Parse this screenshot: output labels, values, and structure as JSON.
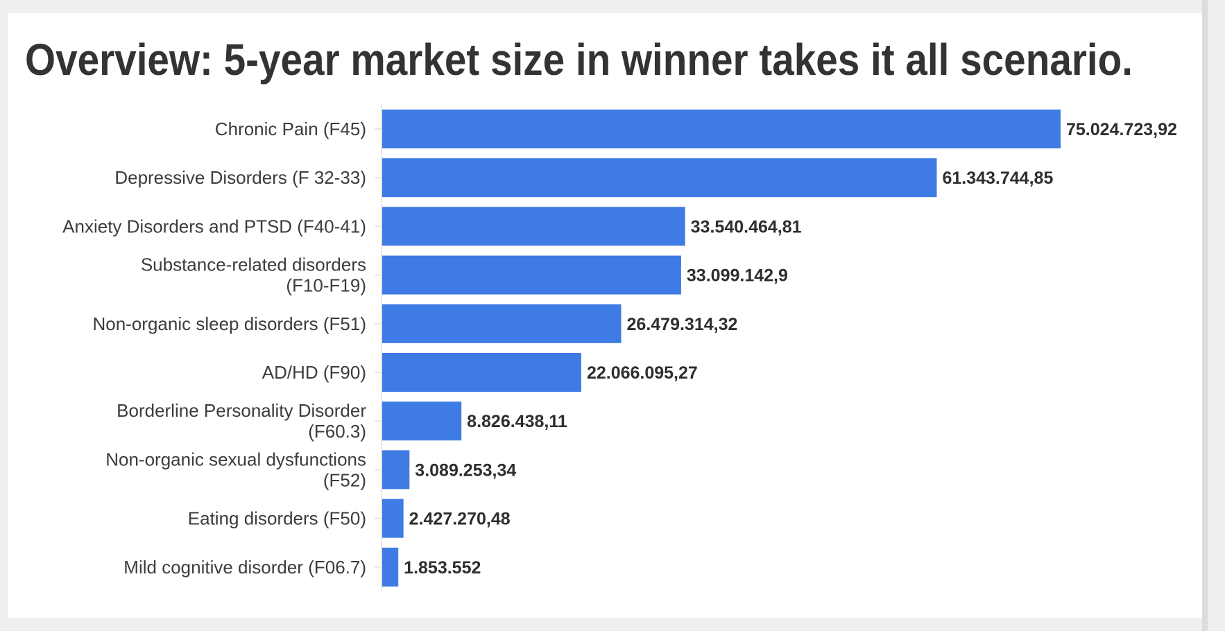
{
  "chart_data": {
    "type": "bar",
    "orientation": "horizontal",
    "title": "Overview: 5-year market size in winner takes it all scenario.",
    "categories": [
      [
        "Chronic Pain (F45)"
      ],
      [
        "Depressive Disorders (F 32-33)"
      ],
      [
        "Anxiety Disorders and PTSD (F40-41)"
      ],
      [
        "Substance-related disorders",
        "(F10-F19)"
      ],
      [
        "Non-organic sleep disorders (F51)"
      ],
      [
        "AD/HD (F90)"
      ],
      [
        "Borderline Personality Disorder",
        "(F60.3)"
      ],
      [
        "Non-organic sexual dysfunctions",
        "(F52)"
      ],
      [
        "Eating disorders (F50)"
      ],
      [
        "Mild cognitive disorder (F06.7)"
      ]
    ],
    "values": [
      75024723.92,
      61343744.85,
      33540464.81,
      33099142.9,
      26479314.32,
      22066095.27,
      8826438.11,
      3089253.34,
      2427270.48,
      1853552
    ],
    "value_labels": [
      "75.024.723,92",
      "61.343.744,85",
      "33.540.464,81",
      "33.099.142,9",
      "26.479.314,32",
      "22.066.095,27",
      "8.826.438,11",
      "3.089.253,34",
      "2.427.270,48",
      "1.853.552"
    ],
    "xlabel": "",
    "ylabel": "",
    "xlim": [
      0,
      75024723.92
    ],
    "grid": false,
    "legend": "none",
    "colors": {
      "bar": "#3f7be4",
      "text": "#333333",
      "background": "#ffffff",
      "page": "#efefef"
    }
  }
}
